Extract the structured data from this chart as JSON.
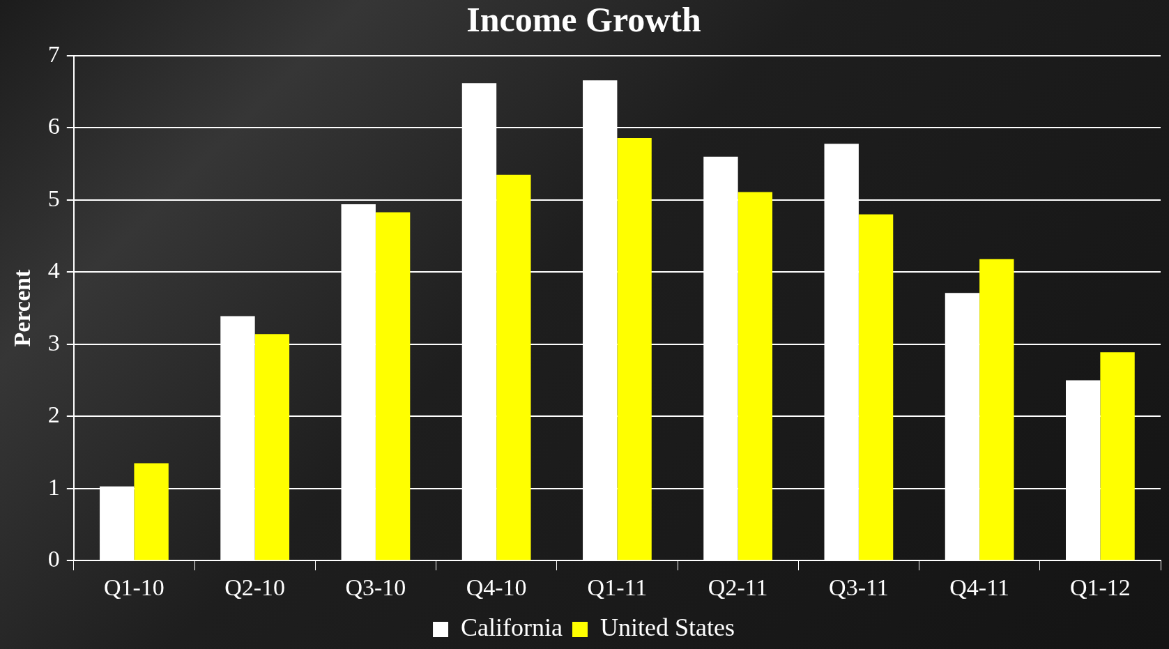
{
  "chart_data": {
    "type": "bar",
    "title": "Income Growth",
    "ylabel": "Percent",
    "categories": [
      "Q1-10",
      "Q2-10",
      "Q3-10",
      "Q4-10",
      "Q1-11",
      "Q2-11",
      "Q3-11",
      "Q4-11",
      "Q1-12"
    ],
    "series": [
      {
        "name": "California",
        "color": "#ffffff",
        "values": [
          1.03,
          3.39,
          4.94,
          6.62,
          6.66,
          5.6,
          5.78,
          3.71,
          2.5
        ]
      },
      {
        "name": "United States",
        "color": "#ffff00",
        "values": [
          1.35,
          3.14,
          4.83,
          5.35,
          5.86,
          5.11,
          4.8,
          4.18,
          2.89
        ]
      }
    ],
    "ylim": [
      0,
      7
    ],
    "yticks": [
      0,
      1,
      2,
      3,
      4,
      5,
      6,
      7
    ],
    "grid": "y",
    "legend": "bottom"
  }
}
